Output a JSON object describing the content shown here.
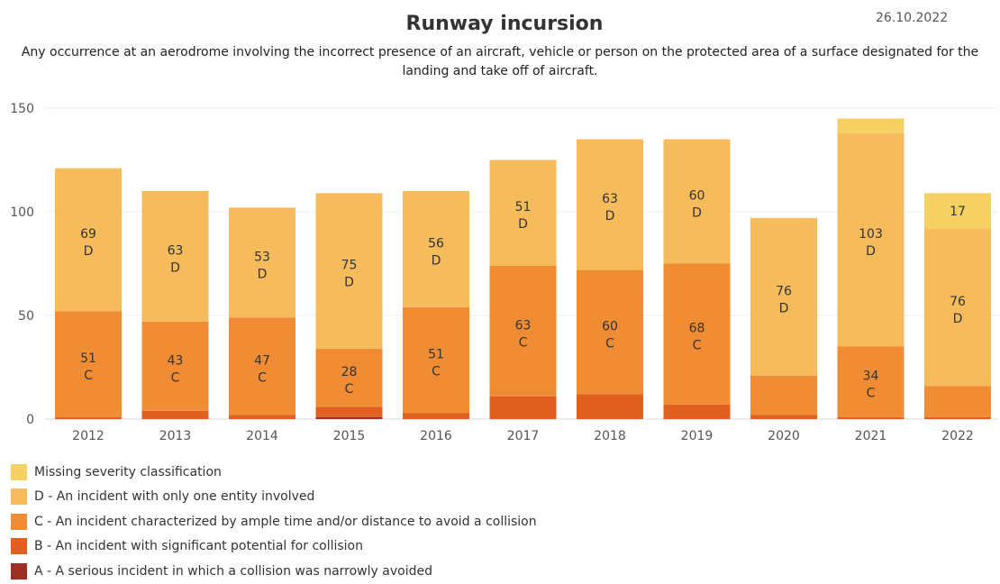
{
  "header": {
    "title": "Runway incursion",
    "date": "26.10.2022",
    "subtitle": "Any occurrence at an aerodrome involving the incorrect presence of an aircraft, vehicle or person on the protected area of a surface designated for the landing and take off of aircraft."
  },
  "colors": {
    "missing": "#F5D063",
    "D": "#F6BB5A",
    "C": "#F08C34",
    "B": "#E06020",
    "A": "#9E2F24"
  },
  "legend": [
    {
      "key": "missing",
      "label": "Missing severity classification"
    },
    {
      "key": "D",
      "label": "D - An incident with only one entity involved"
    },
    {
      "key": "C",
      "label": "C - An incident characterized by ample time and/or distance to avoid a collision"
    },
    {
      "key": "B",
      "label": "B - An incident with significant potential for collision"
    },
    {
      "key": "A",
      "label": "A - A serious incident in which a collision was narrowly avoided"
    }
  ],
  "chart_data": {
    "type": "bar",
    "stacked": true,
    "categories": [
      "2012",
      "2013",
      "2014",
      "2015",
      "2016",
      "2017",
      "2018",
      "2019",
      "2020",
      "2021",
      "2022"
    ],
    "ylim": [
      0,
      150
    ],
    "yticks": [
      0,
      50,
      100,
      150
    ],
    "grid": true,
    "legend_position": "bottom-left",
    "series": [
      {
        "key": "A",
        "name": "A - A serious incident in which a collision was narrowly avoided",
        "label_letter": "A",
        "values": [
          0,
          0,
          0,
          1,
          0,
          0,
          0,
          0,
          0,
          0,
          0
        ]
      },
      {
        "key": "B",
        "name": "B - An incident with significant potential for collision",
        "label_letter": "B",
        "values": [
          1,
          4,
          2,
          5,
          3,
          11,
          12,
          7,
          2,
          1,
          1
        ]
      },
      {
        "key": "C",
        "name": "C - An incident characterized by ample time and/or distance to avoid a collision",
        "label_letter": "C",
        "values": [
          51,
          43,
          47,
          28,
          51,
          63,
          60,
          68,
          19,
          34,
          15
        ]
      },
      {
        "key": "D",
        "name": "D - An incident with only one entity involved",
        "label_letter": "D",
        "values": [
          69,
          63,
          53,
          75,
          56,
          51,
          63,
          60,
          76,
          103,
          76
        ]
      },
      {
        "key": "missing",
        "name": "Missing severity classification",
        "label_letter": "",
        "values": [
          0,
          0,
          0,
          0,
          0,
          0,
          0,
          0,
          0,
          7,
          17
        ]
      }
    ],
    "data_labels": [
      {
        "series": "C",
        "year": "2012",
        "value": 51,
        "letter": "C"
      },
      {
        "series": "D",
        "year": "2012",
        "value": 69,
        "letter": "D"
      },
      {
        "series": "C",
        "year": "2013",
        "value": 43,
        "letter": "C"
      },
      {
        "series": "D",
        "year": "2013",
        "value": 63,
        "letter": "D"
      },
      {
        "series": "C",
        "year": "2014",
        "value": 47,
        "letter": "C"
      },
      {
        "series": "D",
        "year": "2014",
        "value": 53,
        "letter": "D"
      },
      {
        "series": "C",
        "year": "2015",
        "value": 28,
        "letter": "C"
      },
      {
        "series": "D",
        "year": "2015",
        "value": 75,
        "letter": "D"
      },
      {
        "series": "C",
        "year": "2016",
        "value": 51,
        "letter": "C"
      },
      {
        "series": "D",
        "year": "2016",
        "value": 56,
        "letter": "D"
      },
      {
        "series": "C",
        "year": "2017",
        "value": 63,
        "letter": "C"
      },
      {
        "series": "D",
        "year": "2017",
        "value": 51,
        "letter": "D"
      },
      {
        "series": "C",
        "year": "2018",
        "value": 60,
        "letter": "C"
      },
      {
        "series": "D",
        "year": "2018",
        "value": 63,
        "letter": "D"
      },
      {
        "series": "C",
        "year": "2019",
        "value": 68,
        "letter": "C"
      },
      {
        "series": "D",
        "year": "2019",
        "value": 60,
        "letter": "D"
      },
      {
        "series": "D",
        "year": "2020",
        "value": 76,
        "letter": "D"
      },
      {
        "series": "C",
        "year": "2021",
        "value": 34,
        "letter": "C"
      },
      {
        "series": "D",
        "year": "2021",
        "value": 103,
        "letter": "D"
      },
      {
        "series": "D",
        "year": "2022",
        "value": 76,
        "letter": "D"
      },
      {
        "series": "missing",
        "year": "2022",
        "value": 17,
        "letter": ""
      }
    ]
  }
}
